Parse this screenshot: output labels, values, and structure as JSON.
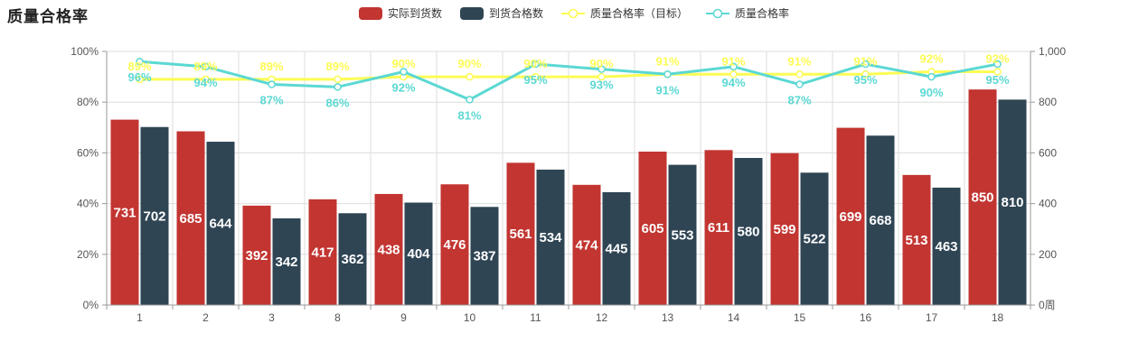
{
  "header": {
    "title": "质量合格率"
  },
  "legend": {
    "items": [
      {
        "label": "实际到货数",
        "type": "bar",
        "color": "#c23531"
      },
      {
        "label": "到货合格数",
        "type": "bar",
        "color": "#2f4554"
      },
      {
        "label": "质量合格率（目标）",
        "type": "line",
        "color": "#fcfc54"
      },
      {
        "label": "质量合格率",
        "type": "line",
        "color": "#5bd8d3"
      }
    ]
  },
  "chart_data": {
    "type": "bar",
    "title": "质量合格率",
    "categories": [
      "1",
      "2",
      "3",
      "8",
      "9",
      "10",
      "11",
      "12",
      "13",
      "14",
      "15",
      "16",
      "17",
      "18"
    ],
    "series": [
      {
        "name": "实际到货数",
        "type": "bar",
        "axis": "right",
        "color": "#c23531",
        "values": [
          731,
          685,
          392,
          417,
          438,
          476,
          561,
          474,
          605,
          611,
          599,
          699,
          513,
          850
        ]
      },
      {
        "name": "到货合格数",
        "type": "bar",
        "axis": "right",
        "color": "#2f4554",
        "values": [
          702,
          644,
          342,
          362,
          404,
          387,
          534,
          445,
          553,
          580,
          522,
          668,
          463,
          810
        ]
      },
      {
        "name": "质量合格率（目标）",
        "type": "line",
        "axis": "left",
        "color": "#fcfc54",
        "label_position": "top",
        "label_suffix": "%",
        "values": [
          89,
          89,
          89,
          89,
          90,
          90,
          90,
          90,
          91,
          91,
          91,
          91,
          92,
          92
        ]
      },
      {
        "name": "质量合格率",
        "type": "line",
        "axis": "left",
        "color": "#5bd8d3",
        "label_position": "bottom",
        "label_suffix": "%",
        "values": [
          96,
          94,
          87,
          86,
          92,
          81,
          95,
          93,
          91,
          94,
          87,
          95,
          90,
          95
        ]
      }
    ],
    "left_axis": {
      "min": 0,
      "max": 100,
      "ticks": [
        "0%",
        "20%",
        "40%",
        "60%",
        "80%",
        "100%"
      ]
    },
    "right_axis": {
      "min": 0,
      "max": 1000,
      "ticks": [
        "0周",
        "200",
        "400",
        "600",
        "800",
        "1,000"
      ]
    },
    "xlabel": "",
    "ylabel": "",
    "grid": true,
    "legend_position": "top",
    "colors": {
      "grid_line": "#dddddd",
      "axis_line": "#999999",
      "axis_text": "#555555",
      "bar_label_text": "#ffffff",
      "background": "#ffffff"
    }
  }
}
